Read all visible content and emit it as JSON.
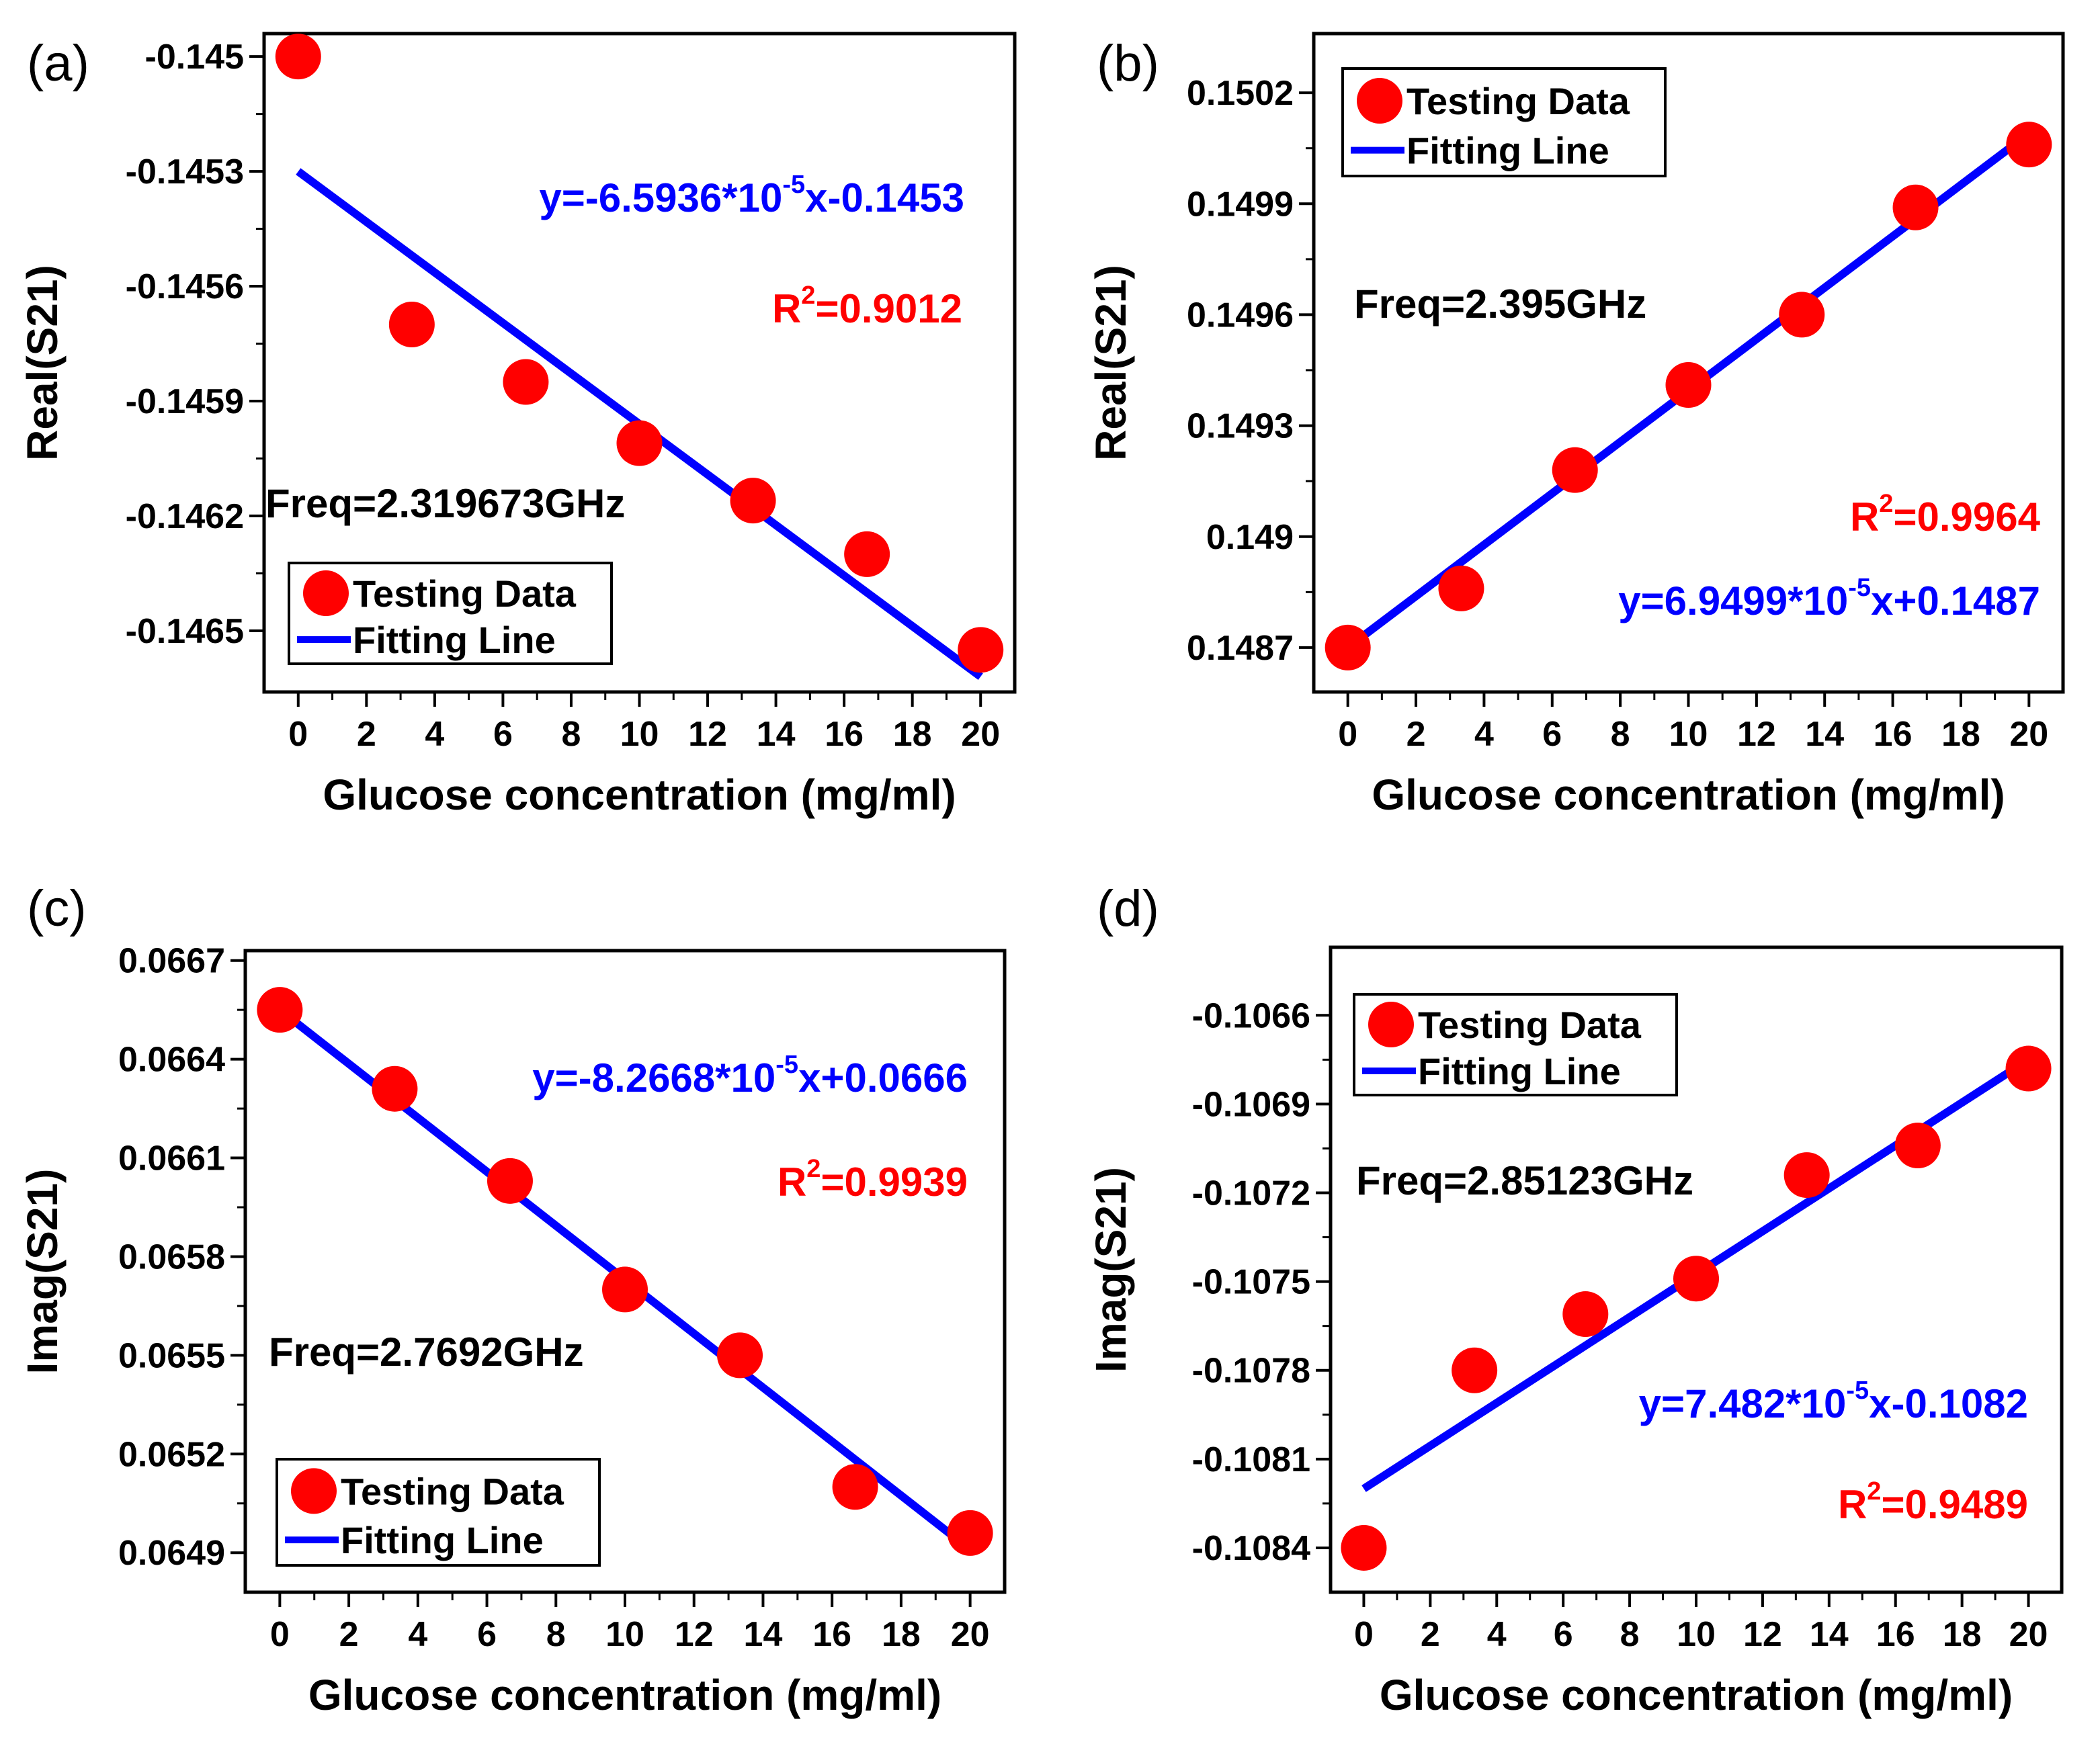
{
  "colors": {
    "points": "#ff0000",
    "fit": "#0000ff",
    "frame": "#000000",
    "r2": "#ff0000",
    "equation": "#0000ff"
  },
  "chart_data": [
    {
      "panel_label": "(a)",
      "type": "scatter",
      "xlabel": "Glucose concentration (mg/ml)",
      "ylabel": "Real(S21)",
      "xlim": [
        -1,
        21
      ],
      "ylim": [
        -0.14666,
        -0.14494
      ],
      "xticks": [
        0,
        2,
        4,
        6,
        8,
        10,
        12,
        14,
        16,
        18,
        20
      ],
      "xtick_labels": [
        "0",
        "2",
        "4",
        "6",
        "8",
        "10",
        "12",
        "14",
        "16",
        "18",
        "20"
      ],
      "yticks": [
        -0.145,
        -0.1453,
        -0.1456,
        -0.1459,
        -0.1462,
        -0.1465
      ],
      "ytick_labels": [
        "-0.145",
        "-0.1453",
        "-0.1456",
        "-0.1459",
        "-0.1462",
        "-0.1465"
      ],
      "series": [
        {
          "name": "Testing Data",
          "kind": "points",
          "x": [
            0,
            3.33,
            6.67,
            10,
            13.33,
            16.67,
            20
          ],
          "y": [
            -0.145,
            -0.1457,
            -0.14585,
            -0.14601,
            -0.14616,
            -0.1463,
            -0.14655
          ]
        },
        {
          "name": "Fitting Line",
          "kind": "line",
          "x": [
            0,
            20
          ],
          "y": [
            -0.1453,
            -0.14662
          ]
        }
      ],
      "legend_labels": [
        "Testing Data",
        "Fitting Line"
      ],
      "legend_position": "bottom-left",
      "equation": {
        "prefix": "y=-6.5936*10",
        "exponent": "-5",
        "suffix": "x-0.1453"
      },
      "r2": {
        "base": "R",
        "exponent": "2",
        "value": "=0.9012"
      },
      "freq": "Freq=2.319673GHz"
    },
    {
      "panel_label": "(b)",
      "type": "scatter",
      "xlabel": "Glucose concentration (mg/ml)",
      "ylabel": "Real(S21)",
      "xlim": [
        -1,
        21
      ],
      "ylim": [
        0.14858,
        0.15036
      ],
      "xticks": [
        0,
        2,
        4,
        6,
        8,
        10,
        12,
        14,
        16,
        18,
        20
      ],
      "xtick_labels": [
        "0",
        "2",
        "4",
        "6",
        "8",
        "10",
        "12",
        "14",
        "16",
        "18",
        "20"
      ],
      "yticks": [
        0.1502,
        0.1499,
        0.1496,
        0.1493,
        0.149,
        0.1487
      ],
      "ytick_labels": [
        "0.1502",
        "0.1499",
        "0.1496",
        "0.1493",
        "0.149",
        "0.1487"
      ],
      "series": [
        {
          "name": "Testing Data",
          "kind": "points",
          "x": [
            0,
            3.33,
            6.67,
            10,
            13.33,
            16.67,
            20
          ],
          "y": [
            0.1487,
            0.14886,
            0.14918,
            0.14941,
            0.1496,
            0.14989,
            0.15006
          ]
        },
        {
          "name": "Fitting Line",
          "kind": "line",
          "x": [
            0,
            20
          ],
          "y": [
            0.1487,
            0.15009
          ]
        }
      ],
      "legend_labels": [
        "Testing Data",
        "Fitting Line"
      ],
      "legend_position": "top-left",
      "equation": {
        "prefix": "y=6.9499*10",
        "exponent": "-5",
        "suffix": "x+0.1487"
      },
      "r2": {
        "base": "R",
        "exponent": "2",
        "value": "=0.9964"
      },
      "freq": "Freq=2.395GHz"
    },
    {
      "panel_label": "(c)",
      "type": "scatter",
      "xlabel": "Glucose concentration (mg/ml)",
      "ylabel": "Imag(S21)",
      "xlim": [
        -1,
        21
      ],
      "ylim": [
        0.06478,
        0.06673
      ],
      "xticks": [
        0,
        2,
        4,
        6,
        8,
        10,
        12,
        14,
        16,
        18,
        20
      ],
      "xtick_labels": [
        "0",
        "2",
        "4",
        "6",
        "8",
        "10",
        "12",
        "14",
        "16",
        "18",
        "20"
      ],
      "yticks": [
        0.0667,
        0.0664,
        0.0661,
        0.0658,
        0.0655,
        0.0652,
        0.0649
      ],
      "ytick_labels": [
        "0.0667",
        "0.0664",
        "0.0661",
        "0.0658",
        "0.0655",
        "0.0652",
        "0.0649"
      ],
      "series": [
        {
          "name": "Testing Data",
          "kind": "points",
          "x": [
            0,
            3.33,
            6.67,
            10,
            13.33,
            16.67,
            20
          ],
          "y": [
            0.06655,
            0.06631,
            0.06603,
            0.0657,
            0.0655,
            0.0651,
            0.06496
          ]
        },
        {
          "name": "Fitting Line",
          "kind": "line",
          "x": [
            0,
            20
          ],
          "y": [
            0.06655,
            0.06491
          ]
        }
      ],
      "legend_labels": [
        "Testing Data",
        "Fitting Line"
      ],
      "legend_position": "bottom-left",
      "equation": {
        "prefix": "y=-8.2668*10",
        "exponent": "-5",
        "suffix": "x+0.0666"
      },
      "r2": {
        "base": "R",
        "exponent": "2",
        "value": "=0.9939"
      },
      "freq": "Freq=2.7692GHz"
    },
    {
      "panel_label": "(d)",
      "type": "scatter",
      "xlabel": "Glucose concentration (mg/ml)",
      "ylabel": "Imag(S21)",
      "xlim": [
        -1,
        21
      ],
      "ylim": [
        -0.10855,
        -0.10637
      ],
      "xticks": [
        0,
        2,
        4,
        6,
        8,
        10,
        12,
        14,
        16,
        18,
        20
      ],
      "xtick_labels": [
        "0",
        "2",
        "4",
        "6",
        "8",
        "10",
        "12",
        "14",
        "16",
        "18",
        "20"
      ],
      "yticks": [
        -0.1066,
        -0.1069,
        -0.1072,
        -0.1075,
        -0.1078,
        -0.1081,
        -0.1084
      ],
      "ytick_labels": [
        "-0.1066",
        "-0.1069",
        "-0.1072",
        "-0.1075",
        "-0.1078",
        "-0.1081",
        "-0.1084"
      ],
      "series": [
        {
          "name": "Testing Data",
          "kind": "points",
          "x": [
            0,
            3.33,
            6.67,
            10,
            13.33,
            16.67,
            20
          ],
          "y": [
            -0.1084,
            -0.1078,
            -0.10761,
            -0.10749,
            -0.10714,
            -0.10704,
            -0.10678
          ]
        },
        {
          "name": "Fitting Line",
          "kind": "line",
          "x": [
            0,
            20
          ],
          "y": [
            -0.1082,
            -0.10675
          ]
        }
      ],
      "legend_labels": [
        "Testing Data",
        "Fitting Line"
      ],
      "legend_position": "top-left",
      "equation": {
        "prefix": "y=7.482*10",
        "exponent": "-5",
        "suffix": "x-0.1082"
      },
      "r2": {
        "base": "R",
        "exponent": "2",
        "value": "=0.9489"
      },
      "freq": "Freq=2.85123GHz"
    }
  ]
}
